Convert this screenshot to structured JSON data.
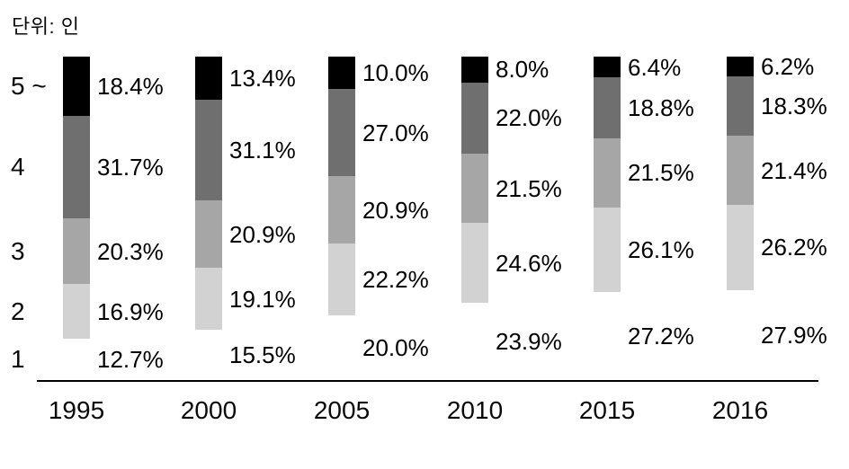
{
  "unit_label": "단위: 인",
  "chart_data": {
    "type": "bar",
    "subtype": "stacked-100-percent-vertical",
    "title": "단위: 인",
    "title_meaning": "Unit: persons (household size)",
    "categories": [
      "1995",
      "2000",
      "2005",
      "2010",
      "2015",
      "2016"
    ],
    "series": [
      {
        "name": "5 ~",
        "color": "#000000",
        "values": [
          18.4,
          13.4,
          10.0,
          8.0,
          6.4,
          6.2
        ]
      },
      {
        "name": "4",
        "color": "#6f6f6f",
        "values": [
          31.7,
          31.1,
          27.0,
          22.0,
          18.8,
          18.3
        ]
      },
      {
        "name": "3",
        "color": "#a6a6a6",
        "values": [
          20.3,
          20.9,
          20.9,
          21.5,
          21.5,
          21.4
        ]
      },
      {
        "name": "2",
        "color": "#d2d2d2",
        "values": [
          16.9,
          19.1,
          22.2,
          24.6,
          26.1,
          26.2
        ]
      },
      {
        "name": "1",
        "color": "#ffffff",
        "values": [
          12.7,
          15.5,
          20.0,
          23.9,
          27.2,
          27.9
        ]
      }
    ],
    "value_suffix": "%",
    "value_decimals": 1,
    "ylim": [
      0,
      100
    ],
    "xlabel": "",
    "ylabel": "",
    "grid": false,
    "legend_position": "left-axis-labels",
    "axis_line_color": "#000000",
    "background_color": "#ffffff",
    "text_color": "#000000",
    "notes": "Bottom series (1-person households) drawn as white/invisible segment; only its percentage label is shown below each bar."
  }
}
